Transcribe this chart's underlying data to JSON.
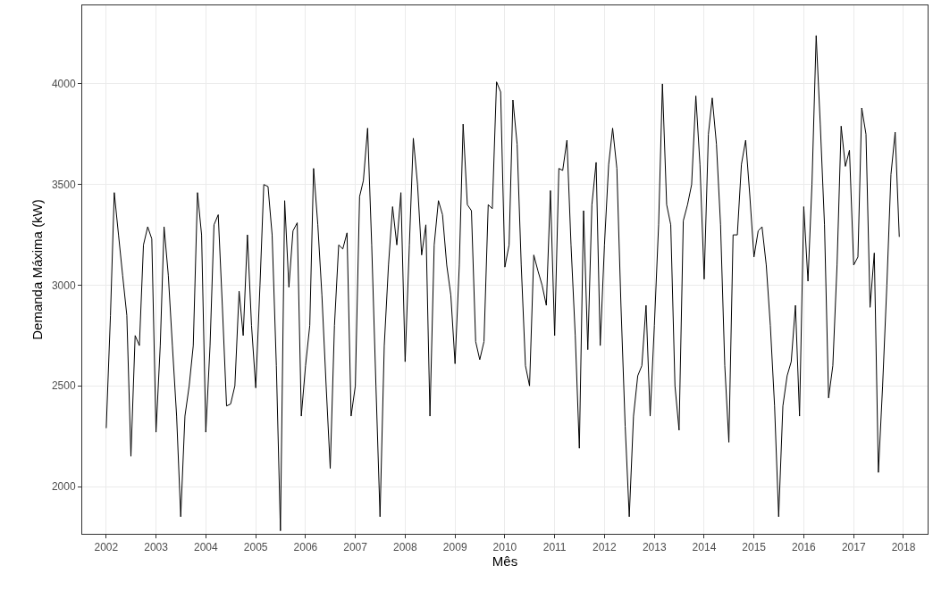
{
  "chart_data": {
    "type": "line",
    "xlabel": "Mês",
    "ylabel": "Demanda Máxima (kW)",
    "x": [
      "2002-01",
      "2002-02",
      "2002-03",
      "2002-04",
      "2002-05",
      "2002-06",
      "2002-07",
      "2002-08",
      "2002-09",
      "2002-10",
      "2002-11",
      "2002-12",
      "2003-01",
      "2003-02",
      "2003-03",
      "2003-04",
      "2003-05",
      "2003-06",
      "2003-07",
      "2003-08",
      "2003-09",
      "2003-10",
      "2003-11",
      "2003-12",
      "2004-01",
      "2004-02",
      "2004-03",
      "2004-04",
      "2004-05",
      "2004-06",
      "2004-07",
      "2004-08",
      "2004-09",
      "2004-10",
      "2004-11",
      "2004-12",
      "2005-01",
      "2005-02",
      "2005-03",
      "2005-04",
      "2005-05",
      "2005-06",
      "2005-07",
      "2005-08",
      "2005-09",
      "2005-10",
      "2005-11",
      "2005-12",
      "2006-01",
      "2006-02",
      "2006-03",
      "2006-04",
      "2006-05",
      "2006-06",
      "2006-07",
      "2006-08",
      "2006-09",
      "2006-10",
      "2006-11",
      "2006-12",
      "2007-01",
      "2007-02",
      "2007-03",
      "2007-04",
      "2007-05",
      "2007-06",
      "2007-07",
      "2007-08",
      "2007-09",
      "2007-10",
      "2007-11",
      "2007-12",
      "2008-01",
      "2008-02",
      "2008-03",
      "2008-04",
      "2008-05",
      "2008-06",
      "2008-07",
      "2008-08",
      "2008-09",
      "2008-10",
      "2008-11",
      "2008-12",
      "2009-01",
      "2009-02",
      "2009-03",
      "2009-04",
      "2009-05",
      "2009-06",
      "2009-07",
      "2009-08",
      "2009-09",
      "2009-10",
      "2009-11",
      "2009-12",
      "2010-01",
      "2010-02",
      "2010-03",
      "2010-04",
      "2010-05",
      "2010-06",
      "2010-07",
      "2010-08",
      "2010-09",
      "2010-10",
      "2010-11",
      "2010-12",
      "2011-01",
      "2011-02",
      "2011-03",
      "2011-04",
      "2011-05",
      "2011-06",
      "2011-07",
      "2011-08",
      "2011-09",
      "2011-10",
      "2011-11",
      "2011-12",
      "2012-01",
      "2012-02",
      "2012-03",
      "2012-04",
      "2012-05",
      "2012-06",
      "2012-07",
      "2012-08",
      "2012-09",
      "2012-10",
      "2012-11",
      "2012-12",
      "2013-01",
      "2013-02",
      "2013-03",
      "2013-04",
      "2013-05",
      "2013-06",
      "2013-07",
      "2013-08",
      "2013-09",
      "2013-10",
      "2013-11",
      "2013-12",
      "2014-01",
      "2014-02",
      "2014-03",
      "2014-04",
      "2014-05",
      "2014-06",
      "2014-07",
      "2014-08",
      "2014-09",
      "2014-10",
      "2014-11",
      "2014-12",
      "2015-01",
      "2015-02",
      "2015-03",
      "2015-04",
      "2015-05",
      "2015-06",
      "2015-07",
      "2015-08",
      "2015-09",
      "2015-10",
      "2015-11",
      "2015-12",
      "2016-01",
      "2016-02",
      "2016-03",
      "2016-04",
      "2016-05",
      "2016-06",
      "2016-07",
      "2016-08",
      "2016-09",
      "2016-10",
      "2016-11",
      "2016-12",
      "2017-01",
      "2017-02",
      "2017-03",
      "2017-04",
      "2017-05",
      "2017-06",
      "2017-07",
      "2017-08",
      "2017-09",
      "2017-10",
      "2017-11",
      "2017-12"
    ],
    "values": [
      2290,
      2850,
      3460,
      3250,
      3050,
      2850,
      2150,
      2750,
      2700,
      3200,
      3290,
      3230,
      2270,
      2700,
      3290,
      3050,
      2700,
      2350,
      1850,
      2350,
      2500,
      2700,
      3460,
      3250,
      2270,
      2700,
      3300,
      3350,
      2900,
      2400,
      2410,
      2500,
      2970,
      2750,
      3250,
      2800,
      2490,
      3000,
      3500,
      3490,
      3250,
      2600,
      1780,
      3420,
      2990,
      3270,
      3310,
      2350,
      2600,
      2800,
      3580,
      3300,
      2950,
      2500,
      2090,
      2800,
      3200,
      3180,
      3260,
      2350,
      2500,
      3440,
      3520,
      3780,
      3200,
      2500,
      1850,
      2700,
      3100,
      3390,
      3200,
      3460,
      2620,
      3200,
      3730,
      3500,
      3150,
      3300,
      2350,
      3200,
      3420,
      3350,
      3100,
      2950,
      2610,
      3100,
      3800,
      3400,
      3370,
      2720,
      2630,
      2720,
      3400,
      3380,
      4010,
      3960,
      3090,
      3200,
      3920,
      3700,
      3100,
      2600,
      2500,
      3150,
      3070,
      3000,
      2900,
      3470,
      2750,
      3580,
      3570,
      3720,
      3200,
      2750,
      2190,
      3370,
      2680,
      3400,
      3610,
      2700,
      3200,
      3600,
      3780,
      3580,
      2900,
      2300,
      1850,
      2350,
      2550,
      2600,
      2900,
      2350,
      2800,
      3300,
      4000,
      3400,
      3300,
      2500,
      2280,
      3320,
      3400,
      3500,
      3940,
      3600,
      3030,
      3750,
      3930,
      3700,
      3300,
      2600,
      2220,
      3250,
      3250,
      3600,
      3720,
      3450,
      3140,
      3270,
      3290,
      3100,
      2800,
      2400,
      1850,
      2400,
      2550,
      2620,
      2900,
      2350,
      3390,
      3020,
      3500,
      4240,
      3800,
      3300,
      2440,
      2600,
      3100,
      3790,
      3590,
      3670,
      3100,
      3140,
      3880,
      3750,
      2890,
      3160,
      2070,
      2500,
      3000,
      3550,
      3760,
      3240
    ],
    "color": "#000000",
    "line_style": "solid",
    "marker": "none",
    "xlim": [
      "2001-07-09",
      "2018-06-27"
    ],
    "xticks": [
      "2002",
      "2003",
      "2004",
      "2005",
      "2006",
      "2007",
      "2008",
      "2009",
      "2010",
      "2011",
      "2012",
      "2013",
      "2014",
      "2015",
      "2016",
      "2017",
      "2018"
    ],
    "ylim": [
      1765,
      4390
    ],
    "yticks": [
      2000,
      2500,
      3000,
      3500,
      4000
    ],
    "grid": true
  }
}
